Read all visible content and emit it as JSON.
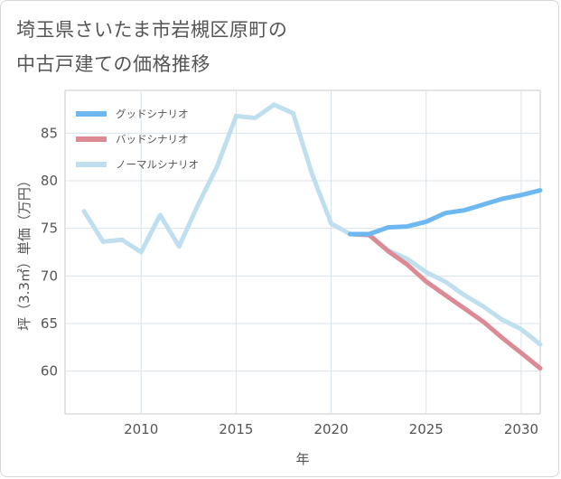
{
  "title_line1": "埼玉県さいたま市岩槻区原町の",
  "title_line2": "中古戸建ての価格推移",
  "chart_data": {
    "type": "line",
    "title": "埼玉県さいたま市岩槻区原町の中古戸建ての価格推移",
    "xlabel": "年",
    "ylabel": "坪（3.3㎡）単価（万円）",
    "xlim": [
      2006,
      2031
    ],
    "ylim": [
      55.5,
      89.5
    ],
    "xticks": [
      2010,
      2015,
      2020,
      2025,
      2030
    ],
    "yticks": [
      60,
      65,
      70,
      75,
      80,
      85
    ],
    "grid": true,
    "legend_position": "top-left",
    "series": [
      {
        "name": "グッドシナリオ",
        "color": "#6db8f0",
        "x": [
          2021,
          2022,
          2023,
          2024,
          2025,
          2026,
          2027,
          2028,
          2029,
          2030,
          2031
        ],
        "y": [
          74.4,
          74.4,
          75.1,
          75.2,
          75.7,
          76.6,
          76.9,
          77.5,
          78.1,
          78.5,
          79.0
        ]
      },
      {
        "name": "バッドシナリオ",
        "color": "#dc8a93",
        "x": [
          2021,
          2022,
          2023,
          2024,
          2025,
          2026,
          2027,
          2028,
          2029,
          2030,
          2031
        ],
        "y": [
          74.4,
          74.3,
          72.6,
          71.2,
          69.4,
          68.0,
          66.6,
          65.2,
          63.5,
          61.9,
          60.3
        ]
      },
      {
        "name": "ノーマルシナリオ",
        "color": "#bfdfee",
        "x": [
          2007,
          2008,
          2009,
          2010,
          2011,
          2012,
          2013,
          2014,
          2015,
          2016,
          2017,
          2018,
          2019,
          2020,
          2021,
          2022,
          2023,
          2024,
          2025,
          2026,
          2027,
          2028,
          2029,
          2030,
          2031
        ],
        "y": [
          76.8,
          73.6,
          73.8,
          72.5,
          76.4,
          73.1,
          77.5,
          81.5,
          86.8,
          86.6,
          88.0,
          87.1,
          80.7,
          75.5,
          74.4,
          74.3,
          72.7,
          71.8,
          70.4,
          69.4,
          68.0,
          66.8,
          65.4,
          64.4,
          62.8
        ]
      }
    ]
  }
}
